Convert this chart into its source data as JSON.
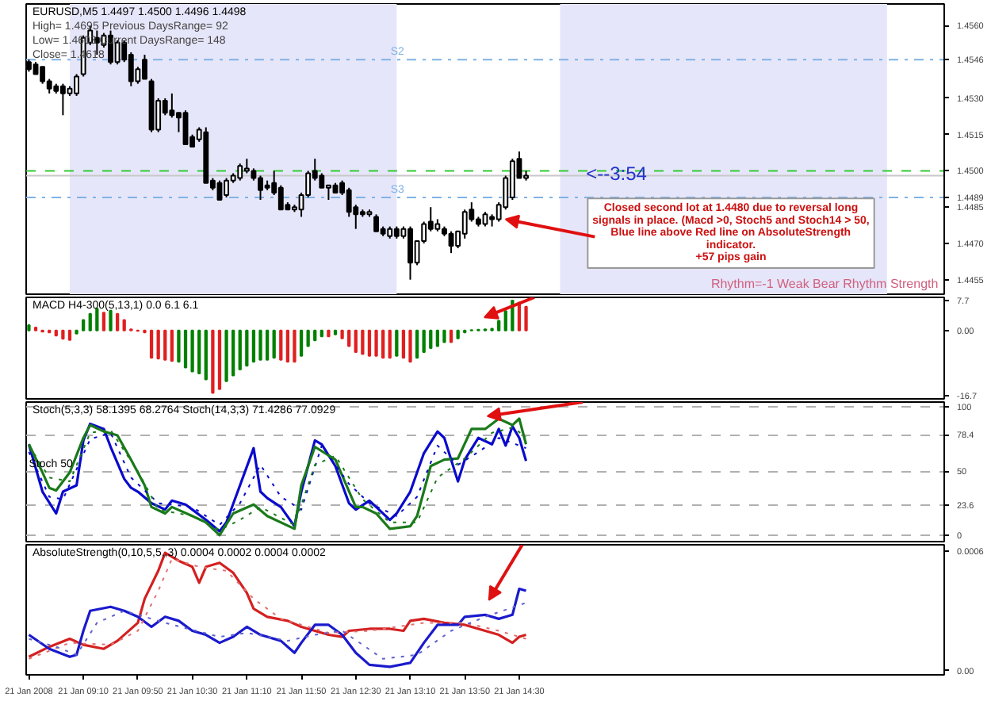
{
  "chart_data": [
    {
      "type": "candlestick",
      "title": "EURUSD,M5 1.4497 1.4500 1.4496 1.4498",
      "x": [
        "2008-01-21T08:30",
        "2008-01-21T08:35",
        "2008-01-21T08:40",
        "2008-01-21T08:45",
        "2008-01-21T08:50",
        "2008-01-21T08:55",
        "2008-01-21T09:00",
        "2008-01-21T09:05",
        "2008-01-21T09:10",
        "2008-01-21T09:15",
        "2008-01-21T09:20",
        "2008-01-21T09:25",
        "2008-01-21T09:30",
        "2008-01-21T09:35",
        "2008-01-21T09:40",
        "2008-01-21T09:45",
        "2008-01-21T09:50",
        "2008-01-21T09:55",
        "2008-01-21T10:00",
        "2008-01-21T10:05",
        "2008-01-21T10:10",
        "2008-01-21T10:15",
        "2008-01-21T10:20",
        "2008-01-21T10:25",
        "2008-01-21T10:30",
        "2008-01-21T10:35",
        "2008-01-21T10:40",
        "2008-01-21T10:45",
        "2008-01-21T10:50",
        "2008-01-21T10:55",
        "2008-01-21T11:00",
        "2008-01-21T11:05",
        "2008-01-21T11:10",
        "2008-01-21T11:15",
        "2008-01-21T11:20",
        "2008-01-21T11:25",
        "2008-01-21T11:30",
        "2008-01-21T11:35",
        "2008-01-21T11:40",
        "2008-01-21T11:45",
        "2008-01-21T11:50",
        "2008-01-21T11:55",
        "2008-01-21T12:00",
        "2008-01-21T12:05",
        "2008-01-21T12:10",
        "2008-01-21T12:15",
        "2008-01-21T12:20",
        "2008-01-21T12:25",
        "2008-01-21T12:30",
        "2008-01-21T12:35",
        "2008-01-21T12:40",
        "2008-01-21T12:45",
        "2008-01-21T12:50",
        "2008-01-21T12:55",
        "2008-01-21T13:00",
        "2008-01-21T13:05",
        "2008-01-21T13:10",
        "2008-01-21T13:15",
        "2008-01-21T13:20",
        "2008-01-21T13:25",
        "2008-01-21T13:30",
        "2008-01-21T13:35",
        "2008-01-21T13:40",
        "2008-01-21T13:45",
        "2008-01-21T13:50",
        "2008-01-21T13:55",
        "2008-01-21T14:00",
        "2008-01-21T14:05",
        "2008-01-21T14:10",
        "2008-01-21T14:15",
        "2008-01-21T14:20",
        "2008-01-21T14:25",
        "2008-01-21T14:30",
        "2008-01-21T14:35"
      ],
      "ohlc": [
        [
          1.4545,
          1.4546,
          1.4541,
          1.4542
        ],
        [
          1.4544,
          1.4545,
          1.454,
          1.454
        ],
        [
          1.4543,
          1.4543,
          1.4536,
          1.4537
        ],
        [
          1.4537,
          1.4538,
          1.4532,
          1.4534
        ],
        [
          1.4535,
          1.4536,
          1.4532,
          1.4533
        ],
        [
          1.4535,
          1.4536,
          1.4523,
          1.4532
        ],
        [
          1.4532,
          1.4535,
          1.4531,
          1.4534
        ],
        [
          1.4532,
          1.454,
          1.4531,
          1.4539
        ],
        [
          1.454,
          1.4556,
          1.4539,
          1.4555
        ],
        [
          1.4553,
          1.456,
          1.4552,
          1.4558
        ],
        [
          1.4555,
          1.4558,
          1.4548,
          1.4553
        ],
        [
          1.4552,
          1.4557,
          1.4551,
          1.4556
        ],
        [
          1.4556,
          1.4558,
          1.4544,
          1.4545
        ],
        [
          1.4545,
          1.4554,
          1.4544,
          1.4553
        ],
        [
          1.4553,
          1.4554,
          1.4545,
          1.4546
        ],
        [
          1.4548,
          1.4549,
          1.4535,
          1.4537
        ],
        [
          1.4537,
          1.4543,
          1.4536,
          1.4542
        ],
        [
          1.4546,
          1.4548,
          1.4538,
          1.4538
        ],
        [
          1.4537,
          1.4538,
          1.4516,
          1.4517
        ],
        [
          1.4517,
          1.453,
          1.4516,
          1.4529
        ],
        [
          1.4529,
          1.453,
          1.4523,
          1.4524
        ],
        [
          1.4525,
          1.4532,
          1.4522,
          1.4523
        ],
        [
          1.4524,
          1.4524,
          1.4516,
          1.4522
        ],
        [
          1.4524,
          1.4525,
          1.4511,
          1.4511
        ],
        [
          1.4514,
          1.4515,
          1.451,
          1.451
        ],
        [
          1.4513,
          1.4518,
          1.4512,
          1.4517
        ],
        [
          1.4516,
          1.4518,
          1.4495,
          1.4495
        ],
        [
          1.4496,
          1.4497,
          1.4492,
          1.4493
        ],
        [
          1.4495,
          1.4496,
          1.4488,
          1.4488
        ],
        [
          1.449,
          1.4497,
          1.4489,
          1.4496
        ],
        [
          1.4496,
          1.4499,
          1.4495,
          1.4498
        ],
        [
          1.4497,
          1.4503,
          1.4496,
          1.4502
        ],
        [
          1.45,
          1.4505,
          1.4499,
          1.4501
        ],
        [
          1.45,
          1.4501,
          1.4496,
          1.4497
        ],
        [
          1.4497,
          1.4498,
          1.4488,
          1.4492
        ],
        [
          1.4494,
          1.4496,
          1.4492,
          1.4493
        ],
        [
          1.4495,
          1.45,
          1.449,
          1.4491
        ],
        [
          1.4493,
          1.4494,
          1.4484,
          1.4484
        ],
        [
          1.4486,
          1.4487,
          1.4484,
          1.4484
        ],
        [
          1.4484,
          1.4486,
          1.4483,
          1.4485
        ],
        [
          1.4484,
          1.4491,
          1.4481,
          1.449
        ],
        [
          1.449,
          1.45,
          1.4489,
          1.4499
        ],
        [
          1.45,
          1.4505,
          1.4496,
          1.4497
        ],
        [
          1.4498,
          1.4499,
          1.4493,
          1.4493
        ],
        [
          1.4493,
          1.4494,
          1.4488,
          1.4494
        ],
        [
          1.4494,
          1.4495,
          1.4491,
          1.4491
        ],
        [
          1.4495,
          1.4496,
          1.449,
          1.4491
        ],
        [
          1.4492,
          1.4493,
          1.4481,
          1.4483
        ],
        [
          1.4485,
          1.4486,
          1.4476,
          1.4482
        ],
        [
          1.4483,
          1.4484,
          1.4481,
          1.4482
        ],
        [
          1.4482,
          1.4484,
          1.4481,
          1.4483
        ],
        [
          1.4481,
          1.4482,
          1.4475,
          1.4475
        ],
        [
          1.4476,
          1.4477,
          1.4473,
          1.4474
        ],
        [
          1.4473,
          1.4477,
          1.4472,
          1.4476
        ],
        [
          1.4476,
          1.4477,
          1.4472,
          1.4473
        ],
        [
          1.4473,
          1.4477,
          1.4472,
          1.4476
        ],
        [
          1.4476,
          1.4477,
          1.4455,
          1.4462
        ],
        [
          1.4462,
          1.4471,
          1.4461,
          1.4471
        ],
        [
          1.4471,
          1.4479,
          1.447,
          1.4478
        ],
        [
          1.4479,
          1.4485,
          1.4475,
          1.4476
        ],
        [
          1.4476,
          1.448,
          1.4475,
          1.4478
        ],
        [
          1.4476,
          1.4477,
          1.4473,
          1.4474
        ],
        [
          1.4474,
          1.4475,
          1.4466,
          1.4469
        ],
        [
          1.4469,
          1.4475,
          1.4468,
          1.4475
        ],
        [
          1.4474,
          1.4484,
          1.4472,
          1.4483
        ],
        [
          1.4484,
          1.4487,
          1.4479,
          1.448
        ],
        [
          1.448,
          1.4481,
          1.4477,
          1.4478
        ],
        [
          1.4478,
          1.4483,
          1.4477,
          1.4482
        ],
        [
          1.4481,
          1.4482,
          1.4477,
          1.448
        ],
        [
          1.448,
          1.4487,
          1.4479,
          1.4486
        ],
        [
          1.4485,
          1.4498,
          1.4484,
          1.4497
        ],
        [
          1.4489,
          1.4505,
          1.4488,
          1.4504
        ],
        [
          1.4505,
          1.4508,
          1.4497,
          1.4497
        ],
        [
          1.4497,
          1.45,
          1.4496,
          1.4498
        ]
      ],
      "xlim": [
        "2008-01-21T08:28",
        "2008-01-21T19:42"
      ],
      "ylim": [
        1.4449,
        1.4569
      ],
      "yticks": [
        {
          "value": 1.456,
          "label": "1.4560"
        },
        1.4546,
        {
          "value": 1.453,
          "label": "1.4530"
        },
        1.4515,
        {
          "value": 1.45,
          "label": "1.4500"
        },
        1.4489,
        1.4485,
        {
          "value": 1.447,
          "label": "1.4470"
        },
        1.4455
      ],
      "tick_labels": "y",
      "ref_lines": [
        {
          "axis": "y",
          "value": 1.4546,
          "label": "S2",
          "color": "#7fb2e5",
          "line_style": "dashdot"
        },
        {
          "axis": "y",
          "value": 1.4489,
          "label": "S3",
          "color": "#7fb2e5",
          "line_style": "dashdot"
        },
        {
          "axis": "y",
          "value": 1.4498,
          "color": "#c8c8c8",
          "line_style": "solid"
        },
        {
          "axis": "y",
          "value": 1.45,
          "color": "#33cc33",
          "line_style": "dashed"
        }
      ],
      "bands": [
        {
          "axis": "x",
          "from": "2008-01-21T09:00",
          "to": "2008-01-21T13:00",
          "color": "#e6e6fa"
        },
        {
          "axis": "x",
          "from": "2008-01-21T15:00",
          "to": "2008-01-21T19:00",
          "color": "#e6e6fa"
        }
      ],
      "annotations": [
        "High= 1.4695 Previous DaysRange= 92",
        "Low= 1.4603 Current DaysRange= 148",
        "Close= 1.4618",
        {
          "text": "Closed second lot at 1.4480 due to reversal long\nsignals in place. (Macd >0, Stoch5 and Stoch14 > 50,\nBlue line above Red line on AbsoluteStrength\nindicator.\n+57 pips gain",
          "x": "2008-01-21T14:20",
          "y": 1.448
        },
        "Rhythm=-1 Weak Bear Rhythm Strength",
        {
          "text": "<--3:54",
          "x": "2008-01-21T15:19",
          "y": 1.4499
        }
      ]
    },
    {
      "type": "bar",
      "title": "MACD H4-300(5,13,1) 0.0 6.1 6.1",
      "x": [
        "2008-01-21T08:30",
        "2008-01-21T08:35",
        "2008-01-21T08:40",
        "2008-01-21T08:45",
        "2008-01-21T08:50",
        "2008-01-21T08:55",
        "2008-01-21T09:00",
        "2008-01-21T09:05",
        "2008-01-21T09:10",
        "2008-01-21T09:15",
        "2008-01-21T09:20",
        "2008-01-21T09:25",
        "2008-01-21T09:30",
        "2008-01-21T09:35",
        "2008-01-21T09:40",
        "2008-01-21T09:45",
        "2008-01-21T09:50",
        "2008-01-21T09:55",
        "2008-01-21T10:00",
        "2008-01-21T10:05",
        "2008-01-21T10:10",
        "2008-01-21T10:15",
        "2008-01-21T10:20",
        "2008-01-21T10:25",
        "2008-01-21T10:30",
        "2008-01-21T10:35",
        "2008-01-21T10:40",
        "2008-01-21T10:45",
        "2008-01-21T10:50",
        "2008-01-21T10:55",
        "2008-01-21T11:00",
        "2008-01-21T11:05",
        "2008-01-21T11:10",
        "2008-01-21T11:15",
        "2008-01-21T11:20",
        "2008-01-21T11:25",
        "2008-01-21T11:30",
        "2008-01-21T11:35",
        "2008-01-21T11:40",
        "2008-01-21T11:45",
        "2008-01-21T11:50",
        "2008-01-21T11:55",
        "2008-01-21T12:00",
        "2008-01-21T12:05",
        "2008-01-21T12:10",
        "2008-01-21T12:15",
        "2008-01-21T12:20",
        "2008-01-21T12:25",
        "2008-01-21T12:30",
        "2008-01-21T12:35",
        "2008-01-21T12:40",
        "2008-01-21T12:45",
        "2008-01-21T12:50",
        "2008-01-21T12:55",
        "2008-01-21T13:00",
        "2008-01-21T13:05",
        "2008-01-21T13:10",
        "2008-01-21T13:15",
        "2008-01-21T13:20",
        "2008-01-21T13:25",
        "2008-01-21T13:30",
        "2008-01-21T13:35",
        "2008-01-21T13:40",
        "2008-01-21T13:45",
        "2008-01-21T13:50",
        "2008-01-21T13:55",
        "2008-01-21T14:00",
        "2008-01-21T14:05",
        "2008-01-21T14:10",
        "2008-01-21T14:15",
        "2008-01-21T14:20",
        "2008-01-21T14:25",
        "2008-01-21T14:30",
        "2008-01-21T14:35"
      ],
      "values": [
        1.4,
        0.8,
        -0.3,
        -0.5,
        -1.3,
        -2.1,
        -2.4,
        -0.8,
        2.7,
        4.3,
        5.6,
        4.6,
        5.1,
        4.3,
        2.7,
        0.3,
        -0.1,
        -0.5,
        -7.0,
        -7.2,
        -7.5,
        -7.8,
        -8.0,
        -9.5,
        -10.5,
        -11.0,
        -12.5,
        -16.0,
        -15.0,
        -13.0,
        -11.5,
        -10.0,
        -9.0,
        -8.0,
        -7.5,
        -7.5,
        -7.0,
        -7.5,
        -8.0,
        -8.0,
        -6.5,
        -4.0,
        -2.5,
        -1.5,
        -1.5,
        -1.0,
        -2.0,
        -4.0,
        -5.5,
        -6.0,
        -6.5,
        -6.5,
        -7.0,
        -7.0,
        -6.5,
        -7.0,
        -8.0,
        -7.0,
        -5.5,
        -4.5,
        -4.0,
        -3.0,
        -3.0,
        -2.0,
        -0.5,
        0.1,
        0.2,
        0.3,
        0.5,
        2.5,
        5.0,
        7.7,
        7.2,
        6.1
      ],
      "colors": [
        "#008000",
        "#e02020",
        "#e02020",
        "#e02020",
        "#e02020",
        "#e02020",
        "#e02020",
        "#008000",
        "#008000",
        "#008000",
        "#008000",
        "#e02020",
        "#008000",
        "#e02020",
        "#e02020",
        "#e02020",
        "#e02020",
        "#e02020",
        "#e02020",
        "#e02020",
        "#e02020",
        "#e02020",
        "#008000",
        "#008000",
        "#008000",
        "#008000",
        "#008000",
        "#e02020",
        "#e02020",
        "#008000",
        "#008000",
        "#008000",
        "#008000",
        "#008000",
        "#008000",
        "#008000",
        "#008000",
        "#e02020",
        "#e02020",
        "#e02020",
        "#008000",
        "#008000",
        "#008000",
        "#008000",
        "#e02020",
        "#008000",
        "#e02020",
        "#e02020",
        "#e02020",
        "#e02020",
        "#e02020",
        "#e02020",
        "#e02020",
        "#e02020",
        "#008000",
        "#e02020",
        "#e02020",
        "#008000",
        "#008000",
        "#008000",
        "#008000",
        "#008000",
        "#e02020",
        "#008000",
        "#008000",
        "#008000",
        "#008000",
        "#008000",
        "#008000",
        "#008000",
        "#008000",
        "#008000",
        "#e02020",
        "#e02020"
      ],
      "xlim": [
        "2008-01-21T08:28",
        "2008-01-21T19:42"
      ],
      "ylim": [
        -17.5,
        8.5
      ],
      "yticks": [
        7.7,
        {
          "value": 0,
          "label": "0.00"
        },
        -16.7
      ],
      "tick_labels": "y"
    },
    {
      "type": "line",
      "title": "Stoch(5,3,3) 58.1395 68.2764 Stoch(14,3,3) 71.4286 77.0929",
      "series": [
        {
          "color": "#0a0acc",
          "x": [
            "2008-01-21T08:30",
            "2008-01-21T08:40",
            "2008-01-21T08:50",
            "2008-01-21T08:55",
            "2008-01-21T09:05",
            "2008-01-21T09:10",
            "2008-01-21T09:15",
            "2008-01-21T09:25",
            "2008-01-21T09:30",
            "2008-01-21T09:40",
            "2008-01-21T09:45",
            "2008-01-21T09:50",
            "2008-01-21T10:00",
            "2008-01-21T10:10",
            "2008-01-21T10:15",
            "2008-01-21T10:25",
            "2008-01-21T10:30",
            "2008-01-21T10:40",
            "2008-01-21T10:50",
            "2008-01-21T10:55",
            "2008-01-21T11:05",
            "2008-01-21T11:15",
            "2008-01-21T11:20",
            "2008-01-21T11:25",
            "2008-01-21T11:35",
            "2008-01-21T11:45",
            "2008-01-21T11:50",
            "2008-01-21T12:00",
            "2008-01-21T12:05",
            "2008-01-21T12:15",
            "2008-01-21T12:25",
            "2008-01-21T12:30",
            "2008-01-21T12:40",
            "2008-01-21T12:45",
            "2008-01-21T12:55",
            "2008-01-21T13:00",
            "2008-01-21T13:10",
            "2008-01-21T13:20",
            "2008-01-21T13:30",
            "2008-01-21T13:35",
            "2008-01-21T13:45",
            "2008-01-21T13:50",
            "2008-01-21T14:00",
            "2008-01-21T14:10",
            "2008-01-21T14:15",
            "2008-01-21T14:20",
            "2008-01-21T14:25",
            "2008-01-21T14:30",
            "2008-01-21T14:35"
          ],
          "values": [
            71,
            34,
            17,
            34,
            39,
            74,
            87,
            83,
            69,
            44,
            37,
            34,
            25,
            20,
            27,
            24,
            20,
            12,
            3,
            10,
            39,
            68,
            34,
            29,
            22,
            7,
            34,
            74,
            71,
            54,
            25,
            20,
            27,
            22,
            12,
            17,
            34,
            64,
            81,
            76,
            42,
            59,
            76,
            71,
            83,
            70,
            85,
            76,
            58
          ]
        },
        {
          "color": "#1a7a1a",
          "x": [
            "2008-01-21T08:30",
            "2008-01-21T08:40",
            "2008-01-21T08:45",
            "2008-01-21T08:50",
            "2008-01-21T09:00",
            "2008-01-21T09:10",
            "2008-01-21T09:15",
            "2008-01-21T09:25",
            "2008-01-21T09:35",
            "2008-01-21T09:45",
            "2008-01-21T09:55",
            "2008-01-21T10:00",
            "2008-01-21T10:10",
            "2008-01-21T10:15",
            "2008-01-21T10:30",
            "2008-01-21T10:40",
            "2008-01-21T10:50",
            "2008-01-21T11:00",
            "2008-01-21T11:15",
            "2008-01-21T11:25",
            "2008-01-21T11:45",
            "2008-01-21T11:50",
            "2008-01-21T12:00",
            "2008-01-21T12:15",
            "2008-01-21T12:30",
            "2008-01-21T12:35",
            "2008-01-21T12:45",
            "2008-01-21T12:55",
            "2008-01-21T13:10",
            "2008-01-21T13:15",
            "2008-01-21T13:25",
            "2008-01-21T13:35",
            "2008-01-21T13:45",
            "2008-01-21T13:55",
            "2008-01-21T14:05",
            "2008-01-21T14:15",
            "2008-01-21T14:25",
            "2008-01-21T14:30",
            "2008-01-21T14:35"
          ],
          "values": [
            71,
            49,
            37,
            35,
            49,
            76,
            86,
            81,
            78,
            59,
            39,
            22,
            17,
            22,
            15,
            10,
            0,
            17,
            24,
            15,
            5,
            39,
            69,
            59,
            22,
            22,
            17,
            5,
            7,
            15,
            54,
            59,
            60,
            83,
            83,
            91,
            86,
            91,
            71
          ]
        },
        {
          "color": "#0a0acc",
          "line_style": "dotted",
          "x": [
            "2008-01-21T08:30",
            "2008-01-21T08:45",
            "2008-01-21T08:55",
            "2008-01-21T09:15",
            "2008-01-21T09:30",
            "2008-01-21T09:45",
            "2008-01-21T10:05",
            "2008-01-21T10:30",
            "2008-01-21T10:50",
            "2008-01-21T11:05",
            "2008-01-21T11:20",
            "2008-01-21T11:35",
            "2008-01-21T11:50",
            "2008-01-21T12:05",
            "2008-01-21T12:25",
            "2008-01-21T12:40",
            "2008-01-21T13:00",
            "2008-01-21T13:15",
            "2008-01-21T13:30",
            "2008-01-21T13:45",
            "2008-01-21T14:00",
            "2008-01-21T14:15",
            "2008-01-21T14:35"
          ],
          "values": [
            65,
            30,
            28,
            75,
            80,
            45,
            25,
            22,
            8,
            25,
            55,
            30,
            20,
            70,
            40,
            25,
            15,
            30,
            70,
            55,
            65,
            76,
            68
          ]
        },
        {
          "color": "#1a7a1a",
          "line_style": "dotted",
          "x": [
            "2008-01-21T08:30",
            "2008-01-21T08:45",
            "2008-01-21T09:00",
            "2008-01-21T09:15",
            "2008-01-21T09:30",
            "2008-01-21T09:50",
            "2008-01-21T10:05",
            "2008-01-21T10:30",
            "2008-01-21T10:50",
            "2008-01-21T11:05",
            "2008-01-21T11:20",
            "2008-01-21T11:45",
            "2008-01-21T12:00",
            "2008-01-21T12:15",
            "2008-01-21T12:35",
            "2008-01-21T12:55",
            "2008-01-21T13:15",
            "2008-01-21T13:30",
            "2008-01-21T13:50",
            "2008-01-21T14:10",
            "2008-01-21T14:25",
            "2008-01-21T14:35"
          ],
          "values": [
            70,
            45,
            42,
            80,
            82,
            50,
            20,
            15,
            4,
            12,
            22,
            8,
            55,
            62,
            28,
            10,
            10,
            45,
            60,
            80,
            84,
            77
          ]
        }
      ],
      "xlim": [
        "2008-01-21T08:28",
        "2008-01-21T19:42"
      ],
      "ylim": [
        -5,
        104
      ],
      "yticks": [
        100,
        78.4,
        50,
        23.6,
        0
      ],
      "grid": "y",
      "tick_labels": "y",
      "annotations": [
        {
          "text": "Stoch 50",
          "x": "2008-01-21T08:30",
          "y": 55
        }
      ]
    },
    {
      "type": "line",
      "title": "AbsoluteStrength(0,10,5,5,,3) 0.0004 0.0002 0.0004 0.0002",
      "series": [
        {
          "color": "#d42020",
          "x": [
            "2008-01-21T08:30",
            "2008-01-21T08:45",
            "2008-01-21T09:00",
            "2008-01-21T09:10",
            "2008-01-21T09:25",
            "2008-01-21T09:35",
            "2008-01-21T09:50",
            "2008-01-21T09:55",
            "2008-01-21T10:05",
            "2008-01-21T10:10",
            "2008-01-21T10:20",
            "2008-01-21T10:30",
            "2008-01-21T10:35",
            "2008-01-21T10:40",
            "2008-01-21T10:50",
            "2008-01-21T11:00",
            "2008-01-21T11:10",
            "2008-01-21T11:15",
            "2008-01-21T11:25",
            "2008-01-21T11:40",
            "2008-01-21T11:50",
            "2008-01-21T12:00",
            "2008-01-21T12:10",
            "2008-01-21T12:20",
            "2008-01-21T12:25",
            "2008-01-21T12:40",
            "2008-01-21T12:55",
            "2008-01-21T13:05",
            "2008-01-21T13:10",
            "2008-01-21T13:20",
            "2008-01-21T13:35",
            "2008-01-21T13:50",
            "2008-01-21T14:00",
            "2008-01-21T14:15",
            "2008-01-21T14:25",
            "2008-01-21T14:30",
            "2008-01-21T14:35"
          ],
          "values": [
            7e-05,
            0.00012,
            0.00016,
            0.00013,
            0.00011,
            0.00015,
            0.00024,
            0.00036,
            0.0005,
            0.00059,
            0.00055,
            0.00052,
            0.00044,
            0.00052,
            0.00054,
            0.00049,
            0.00039,
            0.00031,
            0.00027,
            0.00025,
            0.00022,
            0.0002,
            0.00018,
            0.00017,
            0.0002,
            0.00021,
            0.00021,
            0.0002,
            0.00025,
            0.00026,
            0.00024,
            0.00023,
            0.00021,
            0.00018,
            0.00014,
            0.00017,
            0.00018
          ]
        },
        {
          "color": "#1a1acc",
          "x": [
            "2008-01-21T08:30",
            "2008-01-21T08:45",
            "2008-01-21T09:00",
            "2008-01-21T09:05",
            "2008-01-21T09:10",
            "2008-01-21T09:15",
            "2008-01-21T09:30",
            "2008-01-21T09:40",
            "2008-01-21T09:50",
            "2008-01-21T10:00",
            "2008-01-21T10:10",
            "2008-01-21T10:20",
            "2008-01-21T10:30",
            "2008-01-21T10:40",
            "2008-01-21T10:50",
            "2008-01-21T11:00",
            "2008-01-21T11:10",
            "2008-01-21T11:20",
            "2008-01-21T11:35",
            "2008-01-21T11:45",
            "2008-01-21T11:50",
            "2008-01-21T12:00",
            "2008-01-21T12:10",
            "2008-01-21T12:20",
            "2008-01-21T12:30",
            "2008-01-21T12:40",
            "2008-01-21T12:55",
            "2008-01-21T13:10",
            "2008-01-21T13:20",
            "2008-01-21T13:30",
            "2008-01-21T13:45",
            "2008-01-21T13:50",
            "2008-01-21T14:05",
            "2008-01-21T14:15",
            "2008-01-21T14:25",
            "2008-01-21T14:30",
            "2008-01-21T14:35"
          ],
          "values": [
            0.00018,
            0.00011,
            7e-05,
            8e-05,
            0.0002,
            0.0003,
            0.00032,
            0.0003,
            0.00027,
            0.00022,
            0.00027,
            0.00025,
            0.0002,
            0.00018,
            0.00014,
            0.00017,
            0.00022,
            0.00018,
            0.00015,
            9e-05,
            0.00014,
            0.00023,
            0.00023,
            0.00018,
            9e-05,
            3e-05,
            2e-05,
            4e-05,
            0.00014,
            0.00023,
            0.00023,
            0.00027,
            0.00028,
            0.00026,
            0.00028,
            0.00041,
            0.0004
          ]
        },
        {
          "color": "#e07070",
          "line_style": "dotted",
          "x": [
            "2008-01-21T08:30",
            "2008-01-21T09:00",
            "2008-01-21T09:30",
            "2008-01-21T09:50",
            "2008-01-21T10:05",
            "2008-01-21T10:15",
            "2008-01-21T10:35",
            "2008-01-21T10:55",
            "2008-01-21T11:15",
            "2008-01-21T11:35",
            "2008-01-21T12:10",
            "2008-01-21T12:40",
            "2008-01-21T13:20",
            "2008-01-21T13:50",
            "2008-01-21T14:15",
            "2008-01-21T14:35"
          ],
          "values": [
            6e-05,
            0.00014,
            0.00013,
            0.0002,
            0.0004,
            0.00056,
            0.00052,
            0.0005,
            0.00036,
            0.00026,
            0.00019,
            0.0002,
            0.00024,
            0.00024,
            0.0002,
            0.00016
          ]
        },
        {
          "color": "#6060d0",
          "line_style": "dotted",
          "x": [
            "2008-01-21T08:30",
            "2008-01-21T08:50",
            "2008-01-21T09:05",
            "2008-01-21T09:20",
            "2008-01-21T09:40",
            "2008-01-21T10:10",
            "2008-01-21T10:50",
            "2008-01-21T11:10",
            "2008-01-21T11:40",
            "2008-01-21T12:00",
            "2008-01-21T12:20",
            "2008-01-21T12:50",
            "2008-01-21T13:15",
            "2008-01-21T13:40",
            "2008-01-21T14:05",
            "2008-01-21T14:35"
          ],
          "values": [
            0.00016,
            0.00012,
            8e-05,
            0.00024,
            0.0003,
            0.00024,
            0.00017,
            0.00019,
            0.00015,
            0.00018,
            0.0002,
            6e-05,
            8e-05,
            0.0002,
            0.00027,
            0.00034
          ]
        }
      ],
      "xlim": [
        "2008-01-21T08:28",
        "2008-01-21T19:42"
      ],
      "ylim": [
        -2e-05,
        0.00063
      ],
      "yticks": [
        0.0006,
        {
          "value": 0,
          "label": "0.00"
        }
      ],
      "xticks": [
        {
          "value": "2008-01-21T08:30",
          "label": "21 Jan 2008"
        },
        {
          "value": "2008-01-21T09:10",
          "label": "21 Jan 09:10"
        },
        {
          "value": "2008-01-21T09:50",
          "label": "21 Jan 09:50"
        },
        {
          "value": "2008-01-21T10:30",
          "label": "21 Jan 10:30"
        },
        {
          "value": "2008-01-21T11:10",
          "label": "21 Jan 11:10"
        },
        {
          "value": "2008-01-21T11:50",
          "label": "21 Jan 11:50"
        },
        {
          "value": "2008-01-21T12:30",
          "label": "21 Jan 12:30"
        },
        {
          "value": "2008-01-21T13:10",
          "label": "21 Jan 13:10"
        },
        {
          "value": "2008-01-21T13:50",
          "label": "21 Jan 13:50"
        },
        {
          "value": "2008-01-21T14:30",
          "label": "21 Jan 14:30"
        }
      ]
    }
  ]
}
